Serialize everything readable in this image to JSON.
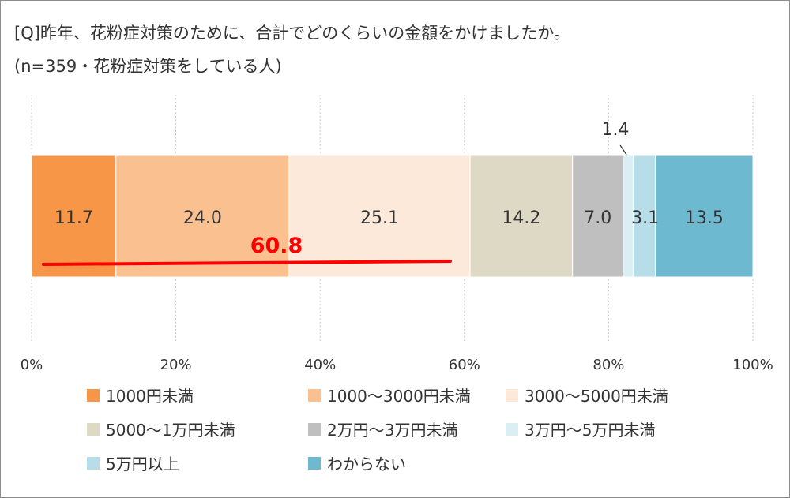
{
  "title_line1": "[Q]昨年、花粉症対策のために、合計でどのくらいの金額をかけましたか。",
  "title_line2": "(n=359・花粉症対策をしている人)",
  "chart_data": {
    "type": "bar",
    "orientation": "horizontal-stacked-100",
    "xlim": [
      0,
      100
    ],
    "x_ticks": [
      "0%",
      "20%",
      "40%",
      "60%",
      "80%",
      "100%"
    ],
    "grid": true,
    "legend_position": "bottom",
    "series": [
      {
        "name": "1000円未満",
        "value": 11.7,
        "label": "11.7",
        "color": "#F79646"
      },
      {
        "name": "1000〜3000円未満",
        "value": 24.0,
        "label": "24.0",
        "color": "#FAC090"
      },
      {
        "name": "3000〜5000円未満",
        "value": 25.1,
        "label": "25.1",
        "color": "#FDE9D9"
      },
      {
        "name": "5000〜1万円未満",
        "value": 14.2,
        "label": "14.2",
        "color": "#DDD9C4"
      },
      {
        "name": "2万円〜3万円未満",
        "value": 7.0,
        "label": "7.0",
        "color": "#BFBFBF"
      },
      {
        "name": "3万円〜5万円未満",
        "value": 1.4,
        "label": "1.4",
        "color": "#DAEEF3"
      },
      {
        "name": "5万円以上",
        "value": 3.1,
        "label": "3.1",
        "color": "#B7DEE8"
      },
      {
        "name": "わからない",
        "value": 13.5,
        "label": "13.5",
        "color": "#6DBAD0"
      }
    ],
    "annotation": {
      "text": "60.8",
      "color": "#FF0000"
    }
  }
}
